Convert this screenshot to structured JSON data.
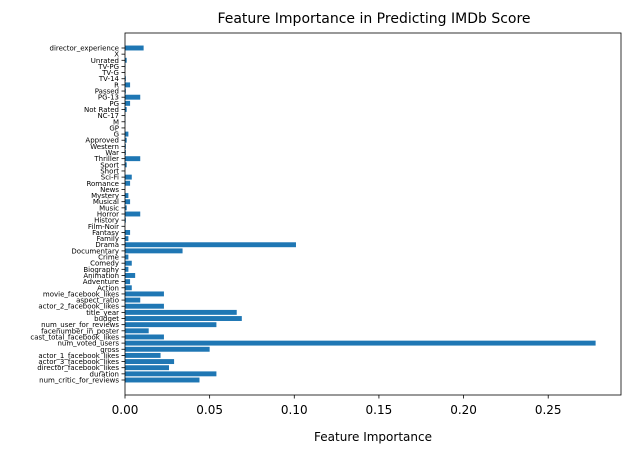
{
  "chart_data": {
    "type": "bar",
    "orientation": "horizontal",
    "title": "Feature Importance in Predicting IMDb Score",
    "xlabel": "Feature Importance",
    "ylabel": "",
    "xlim": [
      0,
      0.293
    ],
    "xticks": [
      "0.00",
      "0.05",
      "0.10",
      "0.15",
      "0.20",
      "0.25"
    ],
    "xtick_values": [
      0,
      0.05,
      0.1,
      0.15,
      0.2,
      0.25
    ],
    "grid": false,
    "bar_color": "#1f77b4",
    "categories": [
      "num_critic_for_reviews",
      "duration",
      "director_facebook_likes",
      "actor_3_facebook_likes",
      "actor_1_facebook_likes",
      "gross",
      "num_voted_users",
      "cast_total_facebook_likes",
      "facenumber_in_poster",
      "num_user_for_reviews",
      "budget",
      "title_year",
      "actor_2_facebook_likes",
      "aspect_ratio",
      "movie_facebook_likes",
      "Action",
      "Adventure",
      "Animation",
      "Biography",
      "Comedy",
      "Crime",
      "Documentary",
      "Drama",
      "Family",
      "Fantasy",
      "Film-Noir",
      "History",
      "Horror",
      "Music",
      "Musical",
      "Mystery",
      "News",
      "Romance",
      "Sci-Fi",
      "Short",
      "Sport",
      "Thriller",
      "War",
      "Western",
      "Approved",
      "G",
      "GP",
      "M",
      "NC-17",
      "Not Rated",
      "PG",
      "PG-13",
      "Passed",
      "R",
      "TV-14",
      "TV-G",
      "TV-PG",
      "Unrated",
      "X",
      "director_experience"
    ],
    "values": [
      0.044,
      0.054,
      0.026,
      0.029,
      0.021,
      0.05,
      0.278,
      0.023,
      0.014,
      0.054,
      0.069,
      0.066,
      0.023,
      0.009,
      0.023,
      0.004,
      0.003,
      0.006,
      0.002,
      0.004,
      0.002,
      0.034,
      0.101,
      0.002,
      0.003,
      0.0,
      0.0005,
      0.009,
      0.001,
      0.003,
      0.002,
      0.0,
      0.003,
      0.004,
      0.0,
      0.001,
      0.009,
      0.0005,
      0.0005,
      0.001,
      0.002,
      0.0,
      0.0002,
      0.0002,
      0.001,
      0.003,
      0.009,
      0.0005,
      0.003,
      0.0005,
      0.0,
      0.0003,
      0.001,
      0.0,
      0.011
    ]
  }
}
